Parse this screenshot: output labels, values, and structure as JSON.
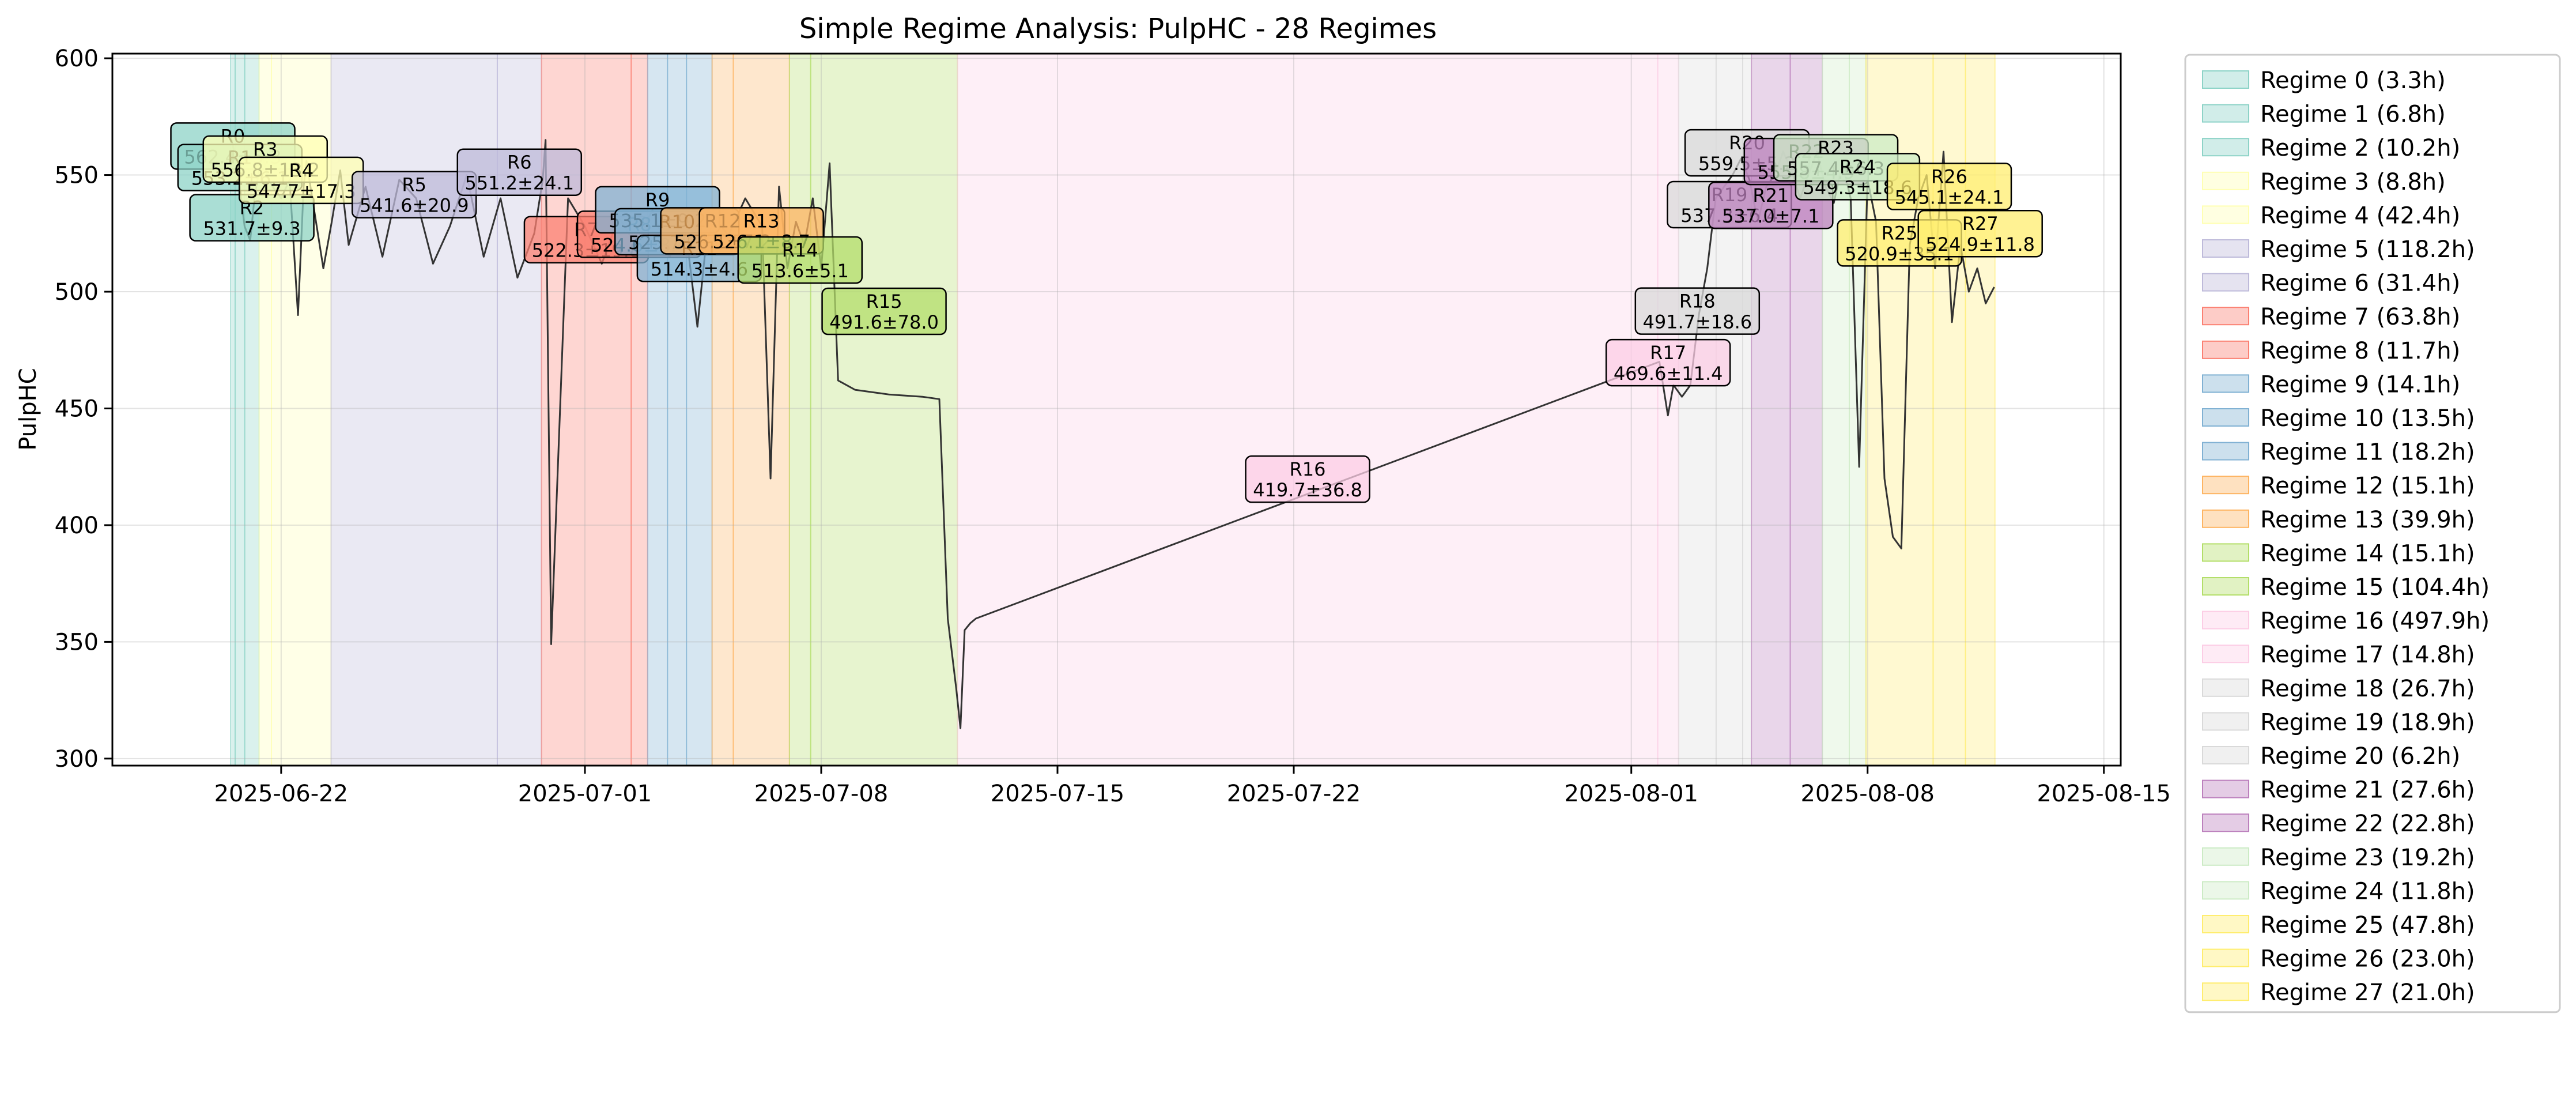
{
  "chart_data": {
    "type": "line",
    "title": "Simple Regime Analysis: PulpHC - 28 Regimes",
    "ylabel": "PulpHC",
    "xlabel": "",
    "xlim": [
      "2025-06-17T00:00",
      "2025-08-15T12:00"
    ],
    "ylim": [
      297,
      602
    ],
    "x_ticks": [
      "2025-06-22",
      "2025-07-01",
      "2025-07-08",
      "2025-07-15",
      "2025-07-22",
      "2025-08-01",
      "2025-08-08",
      "2025-08-15"
    ],
    "y_ticks": [
      300,
      350,
      400,
      450,
      500,
      550,
      600
    ],
    "grid": true,
    "legend_position": "outside-right",
    "line_color": "#333333",
    "regimes": [
      {
        "id": 0,
        "label": "R0",
        "stats": "562.4±5.3",
        "legend": "Regime 0 (3.3h)",
        "start": "2025-06-20T12:00",
        "end": "2025-06-20T15:18",
        "color": "#8dd3c7",
        "mean": 562.4
      },
      {
        "id": 1,
        "label": "R1",
        "stats": "553.2±6.1",
        "legend": "Regime 1 (6.8h)",
        "start": "2025-06-20T15:18",
        "end": "2025-06-20T22:06",
        "color": "#8dd3c7",
        "mean": 553.2
      },
      {
        "id": 2,
        "label": "R2",
        "stats": "531.7±9.3",
        "legend": "Regime 2 (10.2h)",
        "start": "2025-06-20T22:06",
        "end": "2025-06-21T08:18",
        "color": "#8dd3c7",
        "mean": 531.7
      },
      {
        "id": 3,
        "label": "R3",
        "stats": "556.8±13.2",
        "legend": "Regime 3 (8.8h)",
        "start": "2025-06-21T08:18",
        "end": "2025-06-21T17:06",
        "color": "#ffffb3",
        "mean": 556.8
      },
      {
        "id": 4,
        "label": "R4",
        "stats": "547.7±17.3",
        "legend": "Regime 4 (42.4h)",
        "start": "2025-06-21T17:06",
        "end": "2025-06-23T11:30",
        "color": "#ffffb3",
        "mean": 547.7
      },
      {
        "id": 5,
        "label": "R5",
        "stats": "541.6±20.9",
        "legend": "Regime 5 (118.2h)",
        "start": "2025-06-23T11:30",
        "end": "2025-06-28T09:42",
        "color": "#bebada",
        "mean": 541.6
      },
      {
        "id": 6,
        "label": "R6",
        "stats": "551.2±24.1",
        "legend": "Regime 6 (31.4h)",
        "start": "2025-06-28T09:42",
        "end": "2025-06-29T17:06",
        "color": "#bebada",
        "mean": 551.2
      },
      {
        "id": 7,
        "label": "R7",
        "stats": "522.3±19.8",
        "legend": "Regime 7 (63.8h)",
        "start": "2025-06-29T17:06",
        "end": "2025-07-02T08:54",
        "color": "#fb8072",
        "mean": 522.3
      },
      {
        "id": 8,
        "label": "R8",
        "stats": "524.6±8.4",
        "legend": "Regime 8 (11.7h)",
        "start": "2025-07-02T08:54",
        "end": "2025-07-02T20:36",
        "color": "#fb8072",
        "mean": 524.6
      },
      {
        "id": 9,
        "label": "R9",
        "stats": "535.1±9.2",
        "legend": "Regime 9 (14.1h)",
        "start": "2025-07-02T20:36",
        "end": "2025-07-03T10:42",
        "color": "#80b1d3",
        "mean": 535.1
      },
      {
        "id": 10,
        "label": "R10",
        "stats": "525.7±8.1",
        "legend": "Regime 10 (13.5h)",
        "start": "2025-07-03T10:42",
        "end": "2025-07-04T00:12",
        "color": "#80b1d3",
        "mean": 525.7
      },
      {
        "id": 11,
        "label": "R11",
        "stats": "514.3±4.6",
        "legend": "Regime 11 (18.2h)",
        "start": "2025-07-04T00:12",
        "end": "2025-07-04T18:24",
        "color": "#80b1d3",
        "mean": 514.3
      },
      {
        "id": 12,
        "label": "R12",
        "stats": "526.1±7.2",
        "legend": "Regime 12 (15.1h)",
        "start": "2025-07-04T18:24",
        "end": "2025-07-05T09:30",
        "color": "#fdb462",
        "mean": 526.1
      },
      {
        "id": 13,
        "label": "R13",
        "stats": "526.1±8.7",
        "legend": "Regime 13 (39.9h)",
        "start": "2025-07-05T09:30",
        "end": "2025-07-07T01:24",
        "color": "#fdb462",
        "mean": 526.1
      },
      {
        "id": 14,
        "label": "R14",
        "stats": "513.6±5.1",
        "legend": "Regime 14 (15.1h)",
        "start": "2025-07-07T01:24",
        "end": "2025-07-07T16:30",
        "color": "#b3de69",
        "mean": 513.6
      },
      {
        "id": 15,
        "label": "R15",
        "stats": "491.6±78.0",
        "legend": "Regime 15 (104.4h)",
        "start": "2025-07-07T16:30",
        "end": "2025-07-12T00:54",
        "color": "#b3de69",
        "mean": 491.6
      },
      {
        "id": 16,
        "label": "R16",
        "stats": "419.7±36.8",
        "legend": "Regime 16 (497.9h)",
        "start": "2025-07-12T00:54",
        "end": "2025-08-01T18:48",
        "color": "#fccde5",
        "mean": 419.7
      },
      {
        "id": 17,
        "label": "R17",
        "stats": "469.6±11.4",
        "legend": "Regime 17 (14.8h)",
        "start": "2025-08-01T18:48",
        "end": "2025-08-02T09:36",
        "color": "#fccde5",
        "mean": 469.6
      },
      {
        "id": 18,
        "label": "R18",
        "stats": "491.7±18.6",
        "legend": "Regime 18 (26.7h)",
        "start": "2025-08-02T09:36",
        "end": "2025-08-03T12:18",
        "color": "#d9d9d9",
        "mean": 491.7
      },
      {
        "id": 19,
        "label": "R19",
        "stats": "537.3±6.4",
        "legend": "Regime 19 (18.9h)",
        "start": "2025-08-03T12:18",
        "end": "2025-08-04T07:12",
        "color": "#d9d9d9",
        "mean": 537.3
      },
      {
        "id": 20,
        "label": "R20",
        "stats": "559.5±5.2",
        "legend": "Regime 20 (6.2h)",
        "start": "2025-08-04T07:12",
        "end": "2025-08-04T13:24",
        "color": "#d9d9d9",
        "mean": 559.5
      },
      {
        "id": 21,
        "label": "R21",
        "stats": "537.0±7.1",
        "legend": "Regime 21 (27.6h)",
        "start": "2025-08-04T13:24",
        "end": "2025-08-05T17:00",
        "color": "#bc80bd",
        "mean": 537.0
      },
      {
        "id": 22,
        "label": "R22",
        "stats": "555.8±4.9",
        "legend": "Regime 22 (22.8h)",
        "start": "2025-08-05T17:00",
        "end": "2025-08-06T15:48",
        "color": "#bc80bd",
        "mean": 555.8
      },
      {
        "id": 23,
        "label": "R23",
        "stats": "557.4±6.3",
        "legend": "Regime 23 (19.2h)",
        "start": "2025-08-06T15:48",
        "end": "2025-08-07T11:00",
        "color": "#ccebc5",
        "mean": 557.4
      },
      {
        "id": 24,
        "label": "R24",
        "stats": "549.3±18.6",
        "legend": "Regime 24 (11.8h)",
        "start": "2025-08-07T11:00",
        "end": "2025-08-07T22:48",
        "color": "#ccebc5",
        "mean": 549.3
      },
      {
        "id": 25,
        "label": "R25",
        "stats": "520.9±35.1",
        "legend": "Regime 25 (47.8h)",
        "start": "2025-08-07T22:48",
        "end": "2025-08-09T22:36",
        "color": "#ffed6f",
        "mean": 520.9
      },
      {
        "id": 26,
        "label": "R26",
        "stats": "545.1±24.1",
        "legend": "Regime 26 (23.0h)",
        "start": "2025-08-09T22:36",
        "end": "2025-08-10T21:36",
        "color": "#ffed6f",
        "mean": 545.1
      },
      {
        "id": 27,
        "label": "R27",
        "stats": "524.9±11.8",
        "legend": "Regime 27 (21.0h)",
        "start": "2025-08-10T21:36",
        "end": "2025-08-11T18:36",
        "color": "#ffed6f",
        "mean": 524.9
      }
    ],
    "series": [
      {
        "x": [
          "2025-06-20T12:00",
          "2025-06-20T15:00",
          "2025-06-20T18:00",
          "2025-06-20T22:00",
          "2025-06-21T02:00",
          "2025-06-21T05:00",
          "2025-06-21T08:00",
          "2025-06-21T10:00",
          "2025-06-21T12:00",
          "2025-06-21T15:00",
          "2025-06-21T18:00",
          "2025-06-22T00:00",
          "2025-06-22T06:00",
          "2025-06-22T12:00",
          "2025-06-22T16:00",
          "2025-06-22T18:00",
          "2025-06-23T00:00",
          "2025-06-23T06:00",
          "2025-06-23T12:00",
          "2025-06-23T18:00",
          "2025-06-24T00:00",
          "2025-06-24T12:00",
          "2025-06-25T00:00",
          "2025-06-25T12:00",
          "2025-06-26T00:00",
          "2025-06-26T12:00",
          "2025-06-27T00:00",
          "2025-06-27T12:00",
          "2025-06-28T00:00",
          "2025-06-28T12:00",
          "2025-06-29T00:00",
          "2025-06-29T12:00",
          "2025-06-29T18:00",
          "2025-06-29T20:00",
          "2025-06-30T00:00",
          "2025-06-30T12:00",
          "2025-07-01T00:00",
          "2025-07-01T12:00",
          "2025-07-02T00:00",
          "2025-07-02T12:00",
          "2025-07-03T00:00",
          "2025-07-03T12:00",
          "2025-07-04T00:00",
          "2025-07-04T08:00",
          "2025-07-04T14:00",
          "2025-07-04T20:00",
          "2025-07-05T06:00",
          "2025-07-05T18:00",
          "2025-07-06T06:00",
          "2025-07-06T12:00",
          "2025-07-06T18:00",
          "2025-07-07T00:00",
          "2025-07-07T06:00",
          "2025-07-07T12:00",
          "2025-07-07T18:00",
          "2025-07-08T00:00",
          "2025-07-08T06:00",
          "2025-07-08T12:00",
          "2025-07-09T00:00",
          "2025-07-10T00:00",
          "2025-07-11T00:00",
          "2025-07-11T12:00",
          "2025-07-11T18:00",
          "2025-07-12T00:00",
          "2025-07-12T03:00",
          "2025-07-12T06:00",
          "2025-07-12T10:00",
          "2025-07-12T14:00",
          "2025-08-01T20:00",
          "2025-08-02T02:00",
          "2025-08-02T06:00",
          "2025-08-02T12:00",
          "2025-08-02T18:00",
          "2025-08-03T00:00",
          "2025-08-03T06:00",
          "2025-08-03T12:00",
          "2025-08-03T18:00",
          "2025-08-04T00:00",
          "2025-08-04T06:00",
          "2025-08-04T12:00",
          "2025-08-04T18:00",
          "2025-08-05T00:00",
          "2025-08-05T06:00",
          "2025-08-05T12:00",
          "2025-08-05T18:00",
          "2025-08-06T00:00",
          "2025-08-06T06:00",
          "2025-08-06T12:00",
          "2025-08-06T18:00",
          "2025-08-07T00:00",
          "2025-08-07T06:00",
          "2025-08-07T12:00",
          "2025-08-07T18:00",
          "2025-08-08T00:00",
          "2025-08-08T06:00",
          "2025-08-08T12:00",
          "2025-08-08T18:00",
          "2025-08-09T00:00",
          "2025-08-09T06:00",
          "2025-08-09T12:00",
          "2025-08-09T18:00",
          "2025-08-10T00:00",
          "2025-08-10T06:00",
          "2025-08-10T12:00",
          "2025-08-10T18:00",
          "2025-08-11T00:00",
          "2025-08-11T06:00",
          "2025-08-11T12:00",
          "2025-08-11T18:00"
        ],
        "y": [
          567,
          559,
          548,
          528,
          522,
          540,
          551,
          560,
          555,
          548,
          545,
          540,
          548,
          490,
          545,
          556,
          533,
          510,
          530,
          552,
          520,
          545,
          515,
          548,
          540,
          512,
          528,
          550,
          515,
          540,
          506,
          525,
          548,
          565,
          349,
          540,
          528,
          512,
          532,
          520,
          535,
          515,
          525,
          485,
          520,
          532,
          524,
          540,
          528,
          420,
          545,
          510,
          530,
          520,
          540,
          510,
          555,
          462,
          458,
          456,
          455,
          454,
          360,
          330,
          313,
          355,
          358,
          360,
          470,
          447,
          460,
          455,
          460,
          490,
          510,
          540,
          545,
          550,
          557,
          548,
          530,
          545,
          550,
          560,
          552,
          540,
          550,
          560,
          545,
          538,
          555,
          540,
          425,
          548,
          530,
          420,
          395,
          390,
          520,
          540,
          550,
          510,
          560,
          487,
          520,
          500,
          510,
          495,
          502
        ]
      }
    ]
  }
}
